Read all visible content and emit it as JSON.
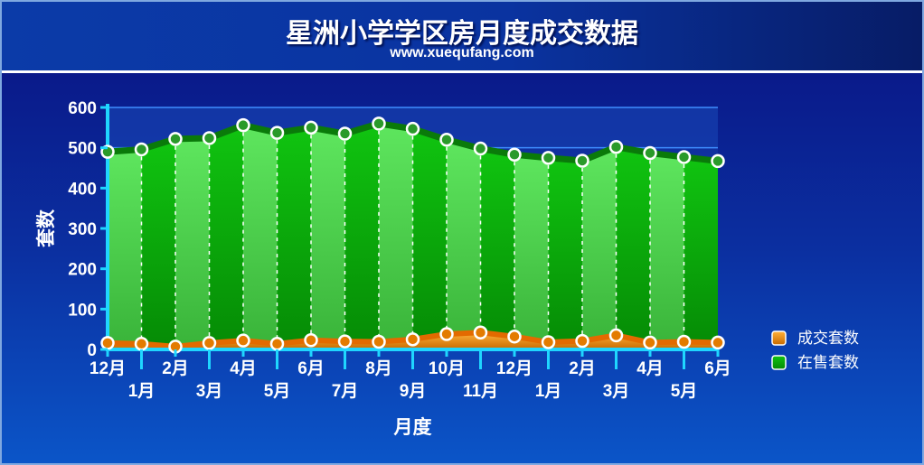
{
  "header": {
    "title": "星洲小学学区房月度成交数据",
    "subtitle": "www.xuequfang.com"
  },
  "colors": {
    "background": "#0a2f9c",
    "sold_series": "#f39a12",
    "sale_series": "#1fcc1f"
  },
  "chart_data": {
    "type": "area",
    "title": "星洲小学学区房月度成交数据",
    "subtitle": "www.xuequfang.com",
    "xlabel": "月度",
    "ylabel": "套数",
    "ylim": [
      0,
      600
    ],
    "yticks": [
      0,
      100,
      200,
      300,
      400,
      500,
      600
    ],
    "grid": "horizontal bands",
    "legend_position": "right",
    "categories": [
      "12月",
      "1月",
      "2月",
      "3月",
      "4月",
      "5月",
      "6月",
      "7月",
      "8月",
      "9月",
      "10月",
      "11月",
      "12月",
      "1月",
      "2月",
      "3月",
      "4月",
      "5月",
      "6月"
    ],
    "series": [
      {
        "name": "成交套数",
        "color": "#f39a12",
        "values": [
          16,
          14,
          7,
          16,
          22,
          14,
          23,
          20,
          19,
          25,
          38,
          42,
          32,
          18,
          21,
          35,
          17,
          19,
          17
        ]
      },
      {
        "name": "在售套数",
        "color": "#1fcc1f",
        "values": [
          490,
          496,
          522,
          524,
          556,
          537,
          550,
          535,
          560,
          547,
          520,
          498,
          483,
          475,
          468,
          502,
          487,
          477,
          467
        ]
      }
    ]
  }
}
